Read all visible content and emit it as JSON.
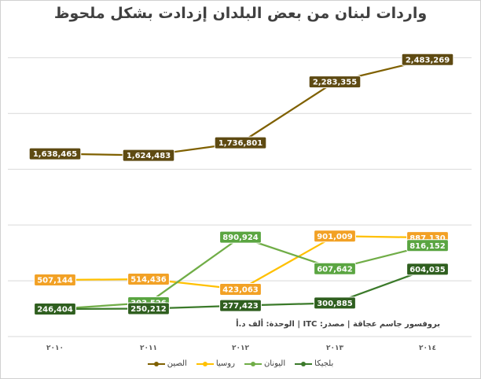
{
  "title": "واردات لبنان من بعض البلدان إزدادت بشكل ملحوظ",
  "source_note": "بروفسور جاسم عجاقة | مصدر: ITC | الوحدة: ألف د.أ",
  "chart_data": {
    "type": "line",
    "title": "واردات لبنان من بعض البلدان إزدادت بشكل ملحوظ",
    "categories": [
      "٢٠١٠",
      "٢٠١١",
      "٢٠١٢",
      "٢٠١٣",
      "٢٠١٤"
    ],
    "x_values": [
      2010,
      2011,
      2012,
      2013,
      2014
    ],
    "ylim": [
      0,
      2700000
    ],
    "grid": true,
    "legend_position": "bottom",
    "series": [
      {
        "name": "الصين",
        "color": "#7f6000",
        "label_bg": "#5e4a12",
        "values": [
          1638465,
          1624483,
          1736801,
          2283355,
          2483269
        ],
        "labels": [
          "1,638,465",
          "1,624,483",
          "1,736,801",
          "2,283,355",
          "2,483,269"
        ]
      },
      {
        "name": "روسيا",
        "color": "#ffc000",
        "label_bg": "#f2a125",
        "values": [
          507144,
          514436,
          423063,
          901009,
          887130
        ],
        "labels": [
          "507,144",
          "514,436",
          "423,063",
          "901,009",
          "887,130"
        ]
      },
      {
        "name": "اليونان",
        "color": "#70ad47",
        "label_bg": "#5aa541",
        "values": [
          246404,
          303526,
          890924,
          607642,
          816152
        ],
        "labels": [
          "246,404",
          "303,526",
          "890,924",
          "607,642",
          "816,152"
        ]
      },
      {
        "name": "بلجيكا",
        "color": "#3b7a2a",
        "label_bg": "#2f5f1f",
        "values": [
          246404,
          250212,
          277423,
          300885,
          604035
        ],
        "labels": [
          "246,404",
          "250,212",
          "277,423",
          "300,885",
          "604,035"
        ]
      }
    ]
  }
}
